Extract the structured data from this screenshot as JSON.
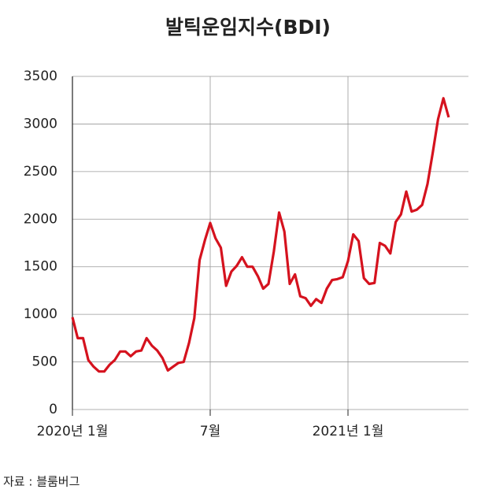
{
  "chart_data": {
    "type": "line",
    "title": "발틱운임지수(BDI)",
    "source": "자료 : 블룸버그",
    "categories": [
      "2020년 1월",
      null,
      null,
      null,
      null,
      null,
      null,
      null,
      null,
      null,
      null,
      null,
      null,
      null,
      null,
      null,
      null,
      null,
      null,
      null,
      null,
      null,
      null,
      null,
      null,
      null,
      "7월",
      null,
      null,
      null,
      null,
      null,
      null,
      null,
      null,
      null,
      null,
      null,
      null,
      null,
      null,
      null,
      null,
      null,
      null,
      null,
      null,
      null,
      null,
      null,
      null,
      null,
      "2021년 1월",
      null,
      null,
      null,
      null,
      null,
      null,
      null,
      null,
      null,
      null,
      null,
      null,
      null,
      null,
      null,
      null,
      null,
      null,
      null
    ],
    "series": [
      {
        "name": "BDI",
        "color": "#d5121e",
        "values": [
          970,
          750,
          750,
          520,
          450,
          400,
          400,
          470,
          520,
          610,
          610,
          560,
          610,
          620,
          750,
          670,
          620,
          540,
          410,
          450,
          490,
          500,
          700,
          960,
          1570,
          1780,
          1960,
          1800,
          1700,
          1300,
          1450,
          1510,
          1600,
          1500,
          1500,
          1400,
          1270,
          1320,
          1660,
          2070,
          1870,
          1320,
          1420,
          1190,
          1170,
          1090,
          1160,
          1120,
          1270,
          1360,
          1370,
          1390,
          1560,
          1840,
          1770,
          1380,
          1320,
          1330,
          1750,
          1720,
          1640,
          1970,
          2050,
          2290,
          2080,
          2100,
          2150,
          2370,
          2700,
          3050,
          3270,
          3070
        ]
      }
    ],
    "ylim": [
      0,
      3500
    ],
    "yticks": [
      0,
      500,
      1000,
      1500,
      2000,
      2500,
      3000,
      3500
    ],
    "grid": true
  }
}
